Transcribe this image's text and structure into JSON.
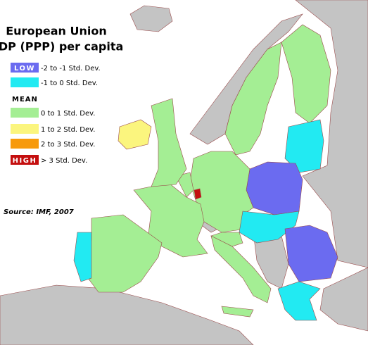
{
  "title": [
    "European Union",
    "GDP (PPP) per capita"
  ],
  "legend": [
    {
      "tag": "LOW",
      "label": "-2 to -1 Std. Dev.",
      "color": "#6b6bf0"
    },
    {
      "label": "-1 to 0 Std. Dev.",
      "color": "#22eaf2"
    },
    {
      "label": "0 to 1 Std. Dev.",
      "color": "#a4ee94"
    },
    {
      "label": "1 to 2 Std. Dev.",
      "color": "#fbf57e"
    },
    {
      "label": "2 to 3 Std. Dev.",
      "color": "#f79a0c"
    },
    {
      "tag": "HIGH",
      "label": "> 3 Std. Dev.",
      "color": "#c40f0f"
    }
  ],
  "mean_label": "MEAN",
  "source": "Source: IMF, 2007"
}
